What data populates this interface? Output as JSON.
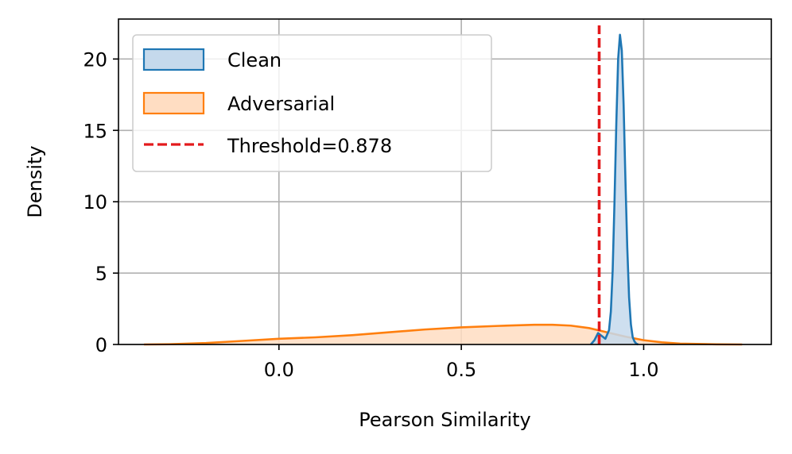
{
  "chart_data": {
    "type": "area",
    "title": "",
    "xlabel": "Pearson Similarity",
    "ylabel": "Density",
    "xlim": [
      -0.44,
      1.35
    ],
    "ylim": [
      0,
      22.8
    ],
    "xticks": [
      0.0,
      0.5,
      1.0
    ],
    "xtick_labels": [
      "0.0",
      "0.5",
      "1.0"
    ],
    "yticks": [
      0,
      5,
      10,
      15,
      20
    ],
    "ytick_labels": [
      "0",
      "5",
      "10",
      "15",
      "20"
    ],
    "grid": true,
    "legend_position": "top-left",
    "series": [
      {
        "name": "Clean",
        "color": "#1f77b4",
        "fill": "#c5d9ec",
        "x": [
          0.855,
          0.865,
          0.875,
          0.885,
          0.895,
          0.905,
          0.91,
          0.915,
          0.92,
          0.925,
          0.93,
          0.935,
          0.94,
          0.945,
          0.95,
          0.955,
          0.96,
          0.965,
          0.97,
          0.975,
          0.98,
          0.985
        ],
        "y": [
          0.0,
          0.3,
          0.8,
          0.6,
          0.4,
          1.0,
          2.3,
          5.2,
          10.0,
          15.5,
          20.0,
          21.7,
          20.6,
          16.8,
          11.5,
          6.8,
          3.3,
          1.4,
          0.5,
          0.2,
          0.05,
          0.0
        ]
      },
      {
        "name": "Adversarial",
        "color": "#ff7f0e",
        "fill": "#ffddc2",
        "x": [
          -0.37,
          -0.3,
          -0.2,
          -0.1,
          0.0,
          0.1,
          0.2,
          0.3,
          0.4,
          0.5,
          0.6,
          0.7,
          0.75,
          0.8,
          0.85,
          0.9,
          0.95,
          1.0,
          1.05,
          1.1,
          1.2,
          1.27
        ],
        "y": [
          0.0,
          0.02,
          0.1,
          0.25,
          0.4,
          0.5,
          0.65,
          0.85,
          1.05,
          1.2,
          1.3,
          1.38,
          1.38,
          1.32,
          1.15,
          0.85,
          0.55,
          0.3,
          0.15,
          0.06,
          0.01,
          0.0
        ]
      }
    ],
    "threshold": {
      "name": "Threshold=0.878",
      "value": 0.878,
      "color": "#e31a1c",
      "style": "dashed"
    }
  }
}
